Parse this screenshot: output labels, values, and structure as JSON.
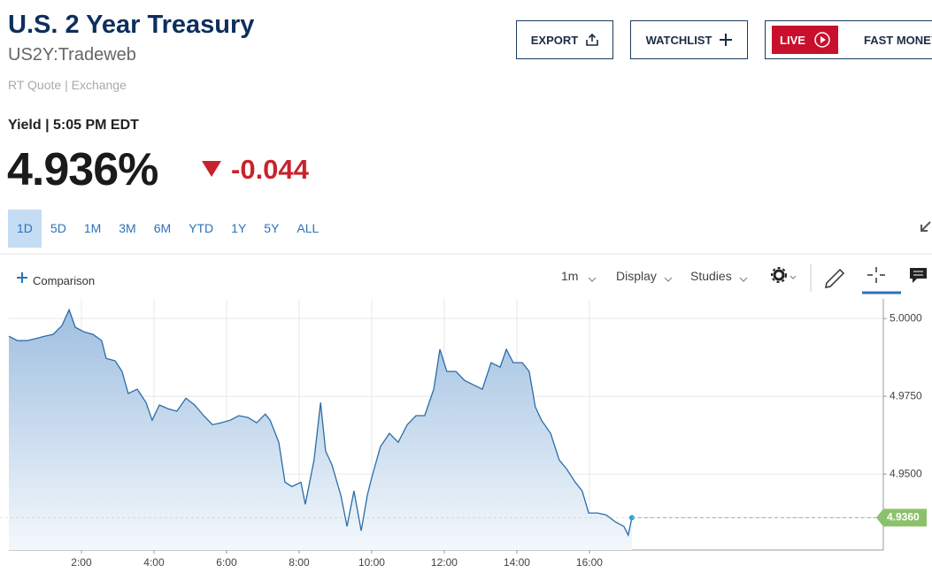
{
  "header": {
    "title": "U.S. 2 Year Treasury",
    "symbol": "US2Y:Tradeweb",
    "quote_source": "RT Quote | Exchange",
    "yield_label": "Yield | 5:05 PM EDT",
    "price": "4.936%",
    "change": "-0.044"
  },
  "buttons": {
    "export": "EXPORT",
    "watchlist": "WATCHLIST",
    "live": "LIVE",
    "show": "FAST MONEY"
  },
  "ranges": [
    "1D",
    "5D",
    "1M",
    "3M",
    "6M",
    "YTD",
    "1Y",
    "5Y",
    "ALL"
  ],
  "selected_range": "1D",
  "toolbar": {
    "comparison": "Comparison",
    "interval": "1m",
    "display": "Display",
    "studies": "Studies"
  },
  "chart_data": {
    "type": "area",
    "color": "#2a6ca8",
    "grid": true,
    "x": [
      0,
      0.24,
      0.49,
      0.73,
      0.98,
      1.22,
      1.46,
      1.66,
      1.83,
      2.07,
      2.32,
      2.56,
      2.68,
      2.93,
      3.12,
      3.29,
      3.54,
      3.78,
      3.95,
      4.15,
      4.39,
      4.63,
      4.88,
      5.12,
      5.37,
      5.61,
      5.85,
      6.1,
      6.34,
      6.59,
      6.83,
      7.07,
      7.2,
      7.44,
      7.61,
      7.8,
      8.05,
      8.17,
      8.41,
      8.59,
      8.73,
      8.9,
      9.15,
      9.32,
      9.51,
      9.71,
      9.88,
      10.0,
      10.24,
      10.49,
      10.73,
      10.98,
      11.22,
      11.46,
      11.71,
      11.88,
      12.07,
      12.32,
      12.56,
      12.8,
      13.05,
      13.29,
      13.54,
      13.71,
      13.9,
      14.15,
      14.34,
      14.51,
      14.68,
      14.93,
      15.17,
      15.37,
      15.61,
      15.8,
      15.98,
      16.22,
      16.46,
      16.71,
      16.95,
      17.07,
      17.17
    ],
    "values": [
      4.9943,
      4.9929,
      4.9929,
      4.9935,
      4.9943,
      4.9949,
      4.9977,
      5.0028,
      4.9972,
      4.9957,
      4.9949,
      4.9929,
      4.9872,
      4.9864,
      4.983,
      4.9759,
      4.9773,
      4.973,
      4.9673,
      4.9722,
      4.971,
      4.9702,
      4.9744,
      4.9722,
      4.9688,
      4.9659,
      4.9665,
      4.9673,
      4.9688,
      4.9682,
      4.9665,
      4.9693,
      4.9673,
      4.9602,
      4.9474,
      4.946,
      4.9474,
      4.9403,
      4.9545,
      4.973,
      4.9574,
      4.9531,
      4.9432,
      4.9332,
      4.9446,
      4.9318,
      4.9432,
      4.9489,
      4.9588,
      4.9631,
      4.9602,
      4.9659,
      4.9688,
      4.9688,
      4.9773,
      4.9901,
      4.983,
      4.983,
      4.9801,
      4.9787,
      4.9773,
      4.9858,
      4.9844,
      4.9901,
      4.9858,
      4.9858,
      4.983,
      4.9716,
      4.9673,
      4.9631,
      4.9545,
      4.9517,
      4.9474,
      4.9446,
      4.9375,
      4.9375,
      4.9369,
      4.9347,
      4.9332,
      4.9304,
      4.936
    ],
    "xlim": [
      0,
      24.1
    ],
    "xticks": [
      {
        "value": 2,
        "label": "2:00"
      },
      {
        "value": 4,
        "label": "4:00"
      },
      {
        "value": 6,
        "label": "6:00"
      },
      {
        "value": 8,
        "label": "8:00"
      },
      {
        "value": 10,
        "label": "10:00"
      },
      {
        "value": 12,
        "label": "12:00"
      },
      {
        "value": 14,
        "label": "14:00"
      },
      {
        "value": 16,
        "label": "16:00"
      }
    ],
    "ylim": [
      4.9256,
      5.0063
    ],
    "yticks": [
      {
        "value": 4.95,
        "label": "4.9500"
      },
      {
        "value": 4.975,
        "label": "4.9750"
      },
      {
        "value": 5,
        "label": "5.0000"
      }
    ],
    "last_price": {
      "value": 4.936,
      "label": "4.9360",
      "color": "#8cc16b"
    }
  }
}
